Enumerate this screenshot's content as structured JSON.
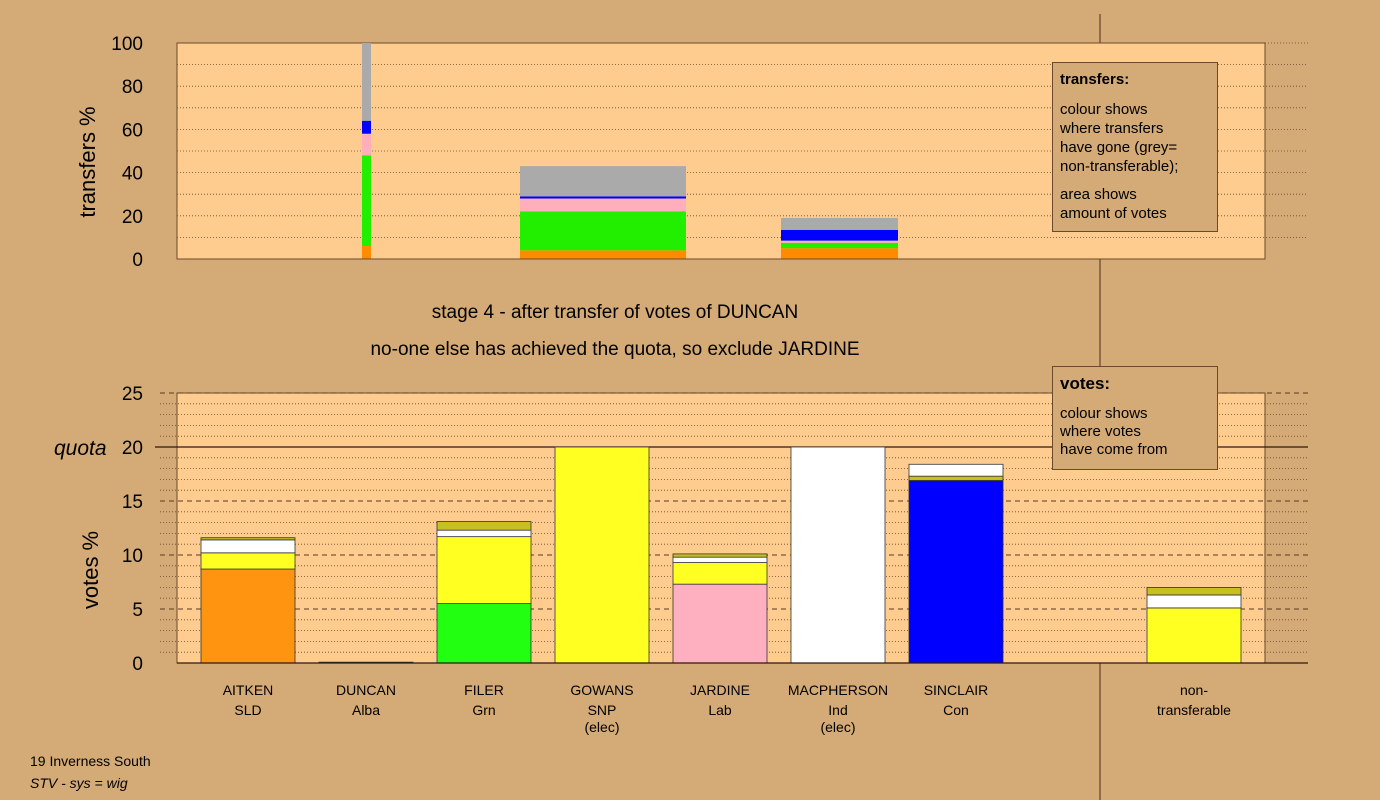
{
  "chart_data": [
    {
      "type": "bar",
      "stacked": true,
      "ylabel": "transfers %",
      "ylim": [
        0,
        100
      ],
      "yticks": [
        "0",
        "20",
        "40",
        "60",
        "80",
        "100"
      ],
      "bars": [
        {
          "category": "DUNCAN",
          "segments": [
            {
              "color": "#ff8c00",
              "value": 6
            },
            {
              "color": "#22ee00",
              "value": 42
            },
            {
              "color": "#ffaebc",
              "value": 10
            },
            {
              "color": "#0000ff",
              "value": 6
            },
            {
              "color": "#aaaaaa",
              "value": 36
            }
          ]
        },
        {
          "category": "GOWANS",
          "segments": [
            {
              "color": "#ff8c00",
              "value": 4
            },
            {
              "color": "#22ee00",
              "value": 18
            },
            {
              "color": "#ffaebc",
              "value": 6
            },
            {
              "color": "#0000ff",
              "value": 1
            },
            {
              "color": "#aaaaaa",
              "value": 14
            }
          ]
        },
        {
          "category": "MACPHERSON",
          "segments": [
            {
              "color": "#ff8c00",
              "value": 5
            },
            {
              "color": "#22ee00",
              "value": 2.5
            },
            {
              "color": "#ffaebc",
              "value": 1
            },
            {
              "color": "#0000ff",
              "value": 5
            },
            {
              "color": "#aaaaaa",
              "value": 5.5
            }
          ]
        }
      ],
      "legend": {
        "title": "transfers:",
        "line1": "colour shows",
        "line2": "where transfers",
        "line3": "have gone (grey=",
        "line4": "non-transferable);",
        "line5": "area shows",
        "line6": "amount of votes"
      }
    },
    {
      "type": "bar",
      "stacked": true,
      "ylabel": "votes %",
      "ylim": [
        0,
        25
      ],
      "yticks": [
        "0",
        "5",
        "10",
        "15",
        "20",
        "25"
      ],
      "quota": 20,
      "quota_label": "quota",
      "candidates": [
        {
          "name": "AITKEN",
          "party": "SLD",
          "extra": "",
          "segments": [
            {
              "color": "#ff9410",
              "value": 8.7
            },
            {
              "color": "#ffff22",
              "value": 1.5
            },
            {
              "color": "#ffffff",
              "value": 1.2
            },
            {
              "color": "#c8c020",
              "value": 0.2
            }
          ]
        },
        {
          "name": "DUNCAN",
          "party": "Alba",
          "extra": "",
          "segments": [
            {
              "color": "#606060",
              "value": 0.08
            }
          ]
        },
        {
          "name": "FILER",
          "party": "Grn",
          "extra": "",
          "segments": [
            {
              "color": "#22ff11",
              "value": 5.5
            },
            {
              "color": "#ffff22",
              "value": 6.2
            },
            {
              "color": "#ffffff",
              "value": 0.6
            },
            {
              "color": "#c8c020",
              "value": 0.8
            }
          ]
        },
        {
          "name": "GOWANS",
          "party": "SNP",
          "extra": "(elec)",
          "segments": [
            {
              "color": "#ffff22",
              "value": 20
            }
          ]
        },
        {
          "name": "JARDINE",
          "party": "Lab",
          "extra": "",
          "segments": [
            {
              "color": "#ffb0c0",
              "value": 7.3
            },
            {
              "color": "#ffff22",
              "value": 2.0
            },
            {
              "color": "#ffffff",
              "value": 0.5
            },
            {
              "color": "#c8c020",
              "value": 0.3
            }
          ]
        },
        {
          "name": "MACPHERSON",
          "party": "Ind",
          "extra": "(elec)",
          "segments": [
            {
              "color": "#ffffff",
              "value": 20
            }
          ]
        },
        {
          "name": "SINCLAIR",
          "party": "Con",
          "extra": "",
          "segments": [
            {
              "color": "#0000ff",
              "value": 16.9
            },
            {
              "color": "#c8c020",
              "value": 0.4
            },
            {
              "color": "#ffffff",
              "value": 1.1
            }
          ]
        }
      ],
      "nontransferable": {
        "label1": "non-",
        "label2": "transferable",
        "segments": [
          {
            "color": "#ffff22",
            "value": 5.1
          },
          {
            "color": "#ffffff",
            "value": 1.2
          },
          {
            "color": "#c8c020",
            "value": 0.7
          }
        ]
      },
      "legend": {
        "title": "votes:",
        "line1": "colour shows",
        "line2": "where votes",
        "line3": "have come from"
      }
    }
  ],
  "stage_text": {
    "line1": "stage 4 - after transfer of votes of DUNCAN",
    "line2": "no-one else has achieved the quota, so exclude JARDINE"
  },
  "footer": {
    "ward": "19 Inverness South",
    "system": "STV - sys = wig"
  },
  "colors": {
    "background": "#d4aa76",
    "plot": "#ffcc90"
  }
}
